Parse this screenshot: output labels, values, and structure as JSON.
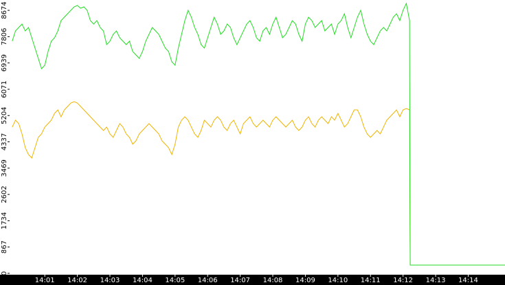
{
  "chart_data": {
    "type": "line",
    "x": [
      0,
      0.1,
      0.2,
      0.3,
      0.4,
      0.5,
      0.6,
      0.7,
      0.8,
      0.9,
      1,
      1.1,
      1.2,
      1.3,
      1.4,
      1.5,
      1.6,
      1.7,
      1.8,
      1.9,
      2,
      2.1,
      2.2,
      2.3,
      2.4,
      2.5,
      2.6,
      2.7,
      2.8,
      2.9,
      3,
      3.1,
      3.2,
      3.3,
      3.4,
      3.5,
      3.6,
      3.7,
      3.8,
      3.9,
      4,
      4.1,
      4.2,
      4.3,
      4.4,
      4.5,
      4.6,
      4.7,
      4.8,
      4.9,
      5,
      5.1,
      5.2,
      5.3,
      5.4,
      5.5,
      5.6,
      5.7,
      5.8,
      5.9,
      6,
      6.1,
      6.2,
      6.3,
      6.4,
      6.5,
      6.6,
      6.7,
      6.8,
      6.9,
      7,
      7.1,
      7.2,
      7.3,
      7.4,
      7.5,
      7.6,
      7.7,
      7.8,
      7.9,
      8,
      8.1,
      8.2,
      8.3,
      8.4,
      8.5,
      8.6,
      8.7,
      8.8,
      8.9,
      9,
      9.1,
      9.2,
      9.3,
      9.4,
      9.5,
      9.6,
      9.7,
      9.8,
      9.9,
      10,
      10.1,
      10.2,
      10.3,
      10.4,
      10.5,
      10.6,
      10.7,
      10.8,
      10.9,
      11,
      11.1,
      11.2,
      11.3,
      11.4,
      11.5,
      11.6,
      11.7,
      11.8,
      11.9,
      12,
      12.1,
      12.2,
      12.21,
      12.22,
      15.2
    ],
    "series": [
      {
        "color": "#f0b400",
        "values": [
          4824,
          5051,
          4938,
          4598,
          4145,
          3918,
          3805,
          4145,
          4485,
          4598,
          4824,
          4938,
          5051,
          5277,
          5391,
          5164,
          5391,
          5504,
          5617,
          5663,
          5617,
          5504,
          5391,
          5277,
          5164,
          5051,
          4938,
          4824,
          4711,
          4824,
          4598,
          4485,
          4711,
          4938,
          4824,
          4598,
          4485,
          4258,
          4371,
          4598,
          4711,
          4824,
          4938,
          4824,
          4711,
          4598,
          4371,
          4258,
          4145,
          3918,
          4258,
          4824,
          5051,
          5164,
          5051,
          4824,
          4598,
          4485,
          4711,
          5051,
          4938,
          4824,
          5051,
          5164,
          5051,
          4824,
          4711,
          4938,
          5051,
          4824,
          4598,
          4938,
          5051,
          5164,
          4938,
          4824,
          4938,
          5051,
          4938,
          4824,
          5051,
          5164,
          5051,
          4938,
          4824,
          4938,
          5051,
          4824,
          4711,
          4824,
          5051,
          5164,
          4938,
          4824,
          5051,
          5164,
          5051,
          4938,
          5164,
          5051,
          5277,
          5051,
          4824,
          4938,
          5164,
          5391,
          5391,
          5164,
          4824,
          4598,
          4485,
          4598,
          4711,
          4598,
          4824,
          5051,
          5164,
          5277,
          5391,
          5164,
          5391,
          5436,
          5391,
          2718,
          272,
          272
        ]
      },
      {
        "color": "#22dd22",
        "values": [
          7656,
          7995,
          8109,
          8222,
          7995,
          8109,
          7769,
          7429,
          7089,
          6750,
          6863,
          7316,
          7656,
          7769,
          7995,
          8335,
          8448,
          8562,
          8675,
          8788,
          8834,
          8743,
          8788,
          8675,
          8335,
          8222,
          8335,
          8109,
          7995,
          7542,
          7656,
          7882,
          7995,
          7769,
          7656,
          7542,
          7656,
          7316,
          7203,
          7089,
          7316,
          7656,
          7882,
          8109,
          7995,
          7882,
          7656,
          7429,
          7316,
          6976,
          6863,
          7429,
          7882,
          8335,
          8675,
          8448,
          8109,
          7882,
          7542,
          7429,
          7769,
          8109,
          8448,
          8222,
          7882,
          7995,
          8222,
          8109,
          7769,
          7542,
          7769,
          7995,
          8222,
          8335,
          8109,
          7769,
          7656,
          7995,
          8109,
          7882,
          8222,
          8448,
          8109,
          7769,
          7882,
          8109,
          8335,
          8222,
          7882,
          7656,
          8222,
          8448,
          8335,
          8109,
          8222,
          8335,
          7995,
          8109,
          8222,
          7882,
          8222,
          8335,
          8562,
          8109,
          7769,
          8109,
          8448,
          8675,
          8222,
          7882,
          7656,
          7542,
          7769,
          7995,
          8109,
          7995,
          8222,
          8448,
          8562,
          8335,
          8675,
          8901,
          8335,
          2718,
          272,
          272
        ]
      }
    ],
    "xlim": [
      -0.08,
      15.13
    ],
    "xticks": [
      {
        "value": 1,
        "label": "14:01"
      },
      {
        "value": 2,
        "label": "14:02"
      },
      {
        "value": 3,
        "label": "14:03"
      },
      {
        "value": 4,
        "label": "14:04"
      },
      {
        "value": 5,
        "label": "14:05"
      },
      {
        "value": 6,
        "label": "14:06"
      },
      {
        "value": 7,
        "label": "14:07"
      },
      {
        "value": 8,
        "label": "14:08"
      },
      {
        "value": 9,
        "label": "14:09"
      },
      {
        "value": 10,
        "label": "14:10"
      },
      {
        "value": 11,
        "label": "14:11"
      },
      {
        "value": 12,
        "label": "14:12"
      },
      {
        "value": 13,
        "label": "14:13"
      },
      {
        "value": 14,
        "label": "14:14"
      }
    ],
    "ylim": [
      0,
      9015
    ],
    "yticks": [
      0,
      867,
      1734,
      2602,
      3469,
      4337,
      5204,
      6071,
      6939,
      7806,
      8674
    ]
  }
}
